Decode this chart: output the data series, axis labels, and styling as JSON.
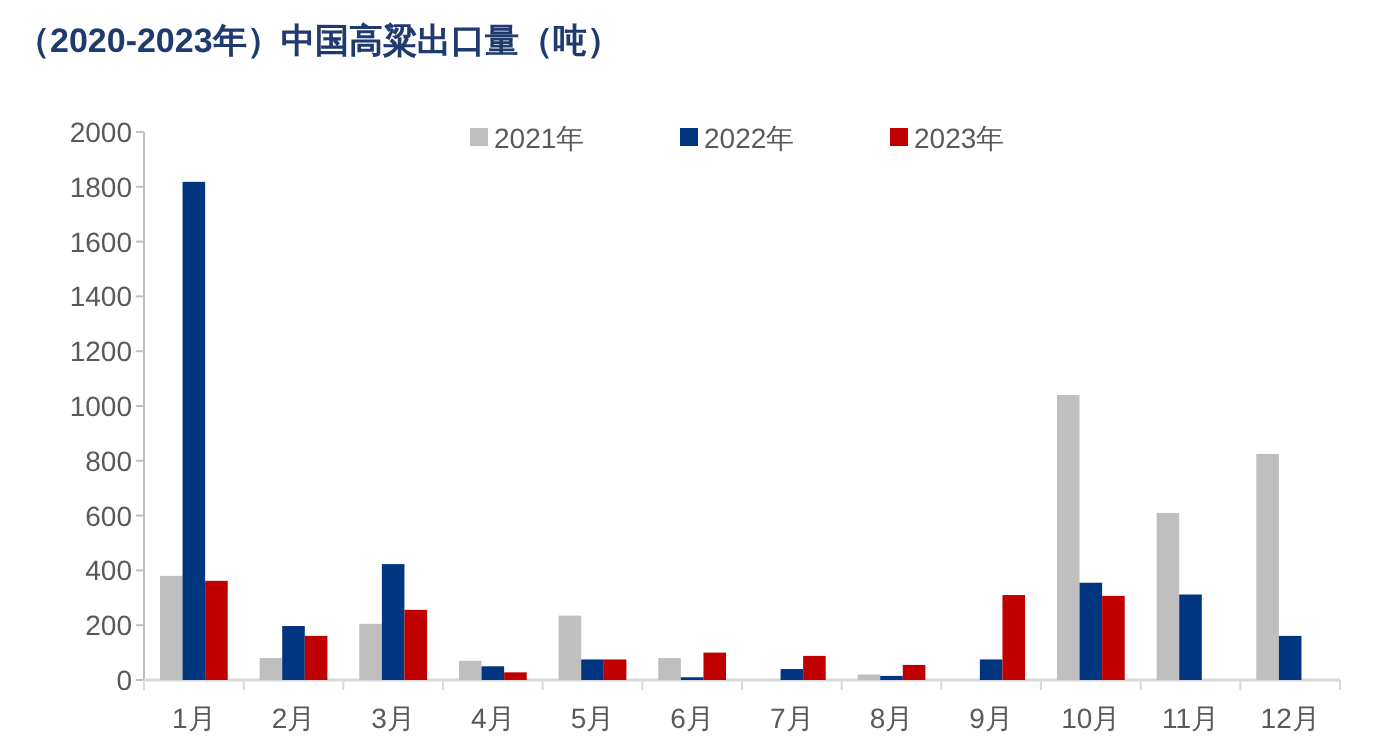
{
  "chart_data": {
    "type": "bar",
    "title": "（2020-2023年）中国高粱出口量（吨）",
    "categories": [
      "1月",
      "2月",
      "3月",
      "4月",
      "5月",
      "6月",
      "7月",
      "8月",
      "9月",
      "10月",
      "11月",
      "12月"
    ],
    "series": [
      {
        "name": "2021年",
        "color": "#bfbfbf",
        "values": [
          380,
          80,
          205,
          70,
          235,
          80,
          null,
          20,
          null,
          1040,
          610,
          825
        ]
      },
      {
        "name": "2022年",
        "color": "#003580",
        "values": [
          1818,
          197,
          423,
          50,
          75,
          10,
          40,
          15,
          75,
          355,
          312,
          161
        ]
      },
      {
        "name": "2023年",
        "color": "#c00000",
        "values": [
          362,
          161,
          256,
          28,
          75,
          100,
          88,
          55,
          310,
          307,
          null,
          null
        ]
      }
    ],
    "ylim": [
      0,
      2000
    ],
    "yticks": [
      0,
      200,
      400,
      600,
      800,
      1000,
      1200,
      1400,
      1600,
      1800,
      2000
    ],
    "grid": false,
    "legend": "top"
  }
}
